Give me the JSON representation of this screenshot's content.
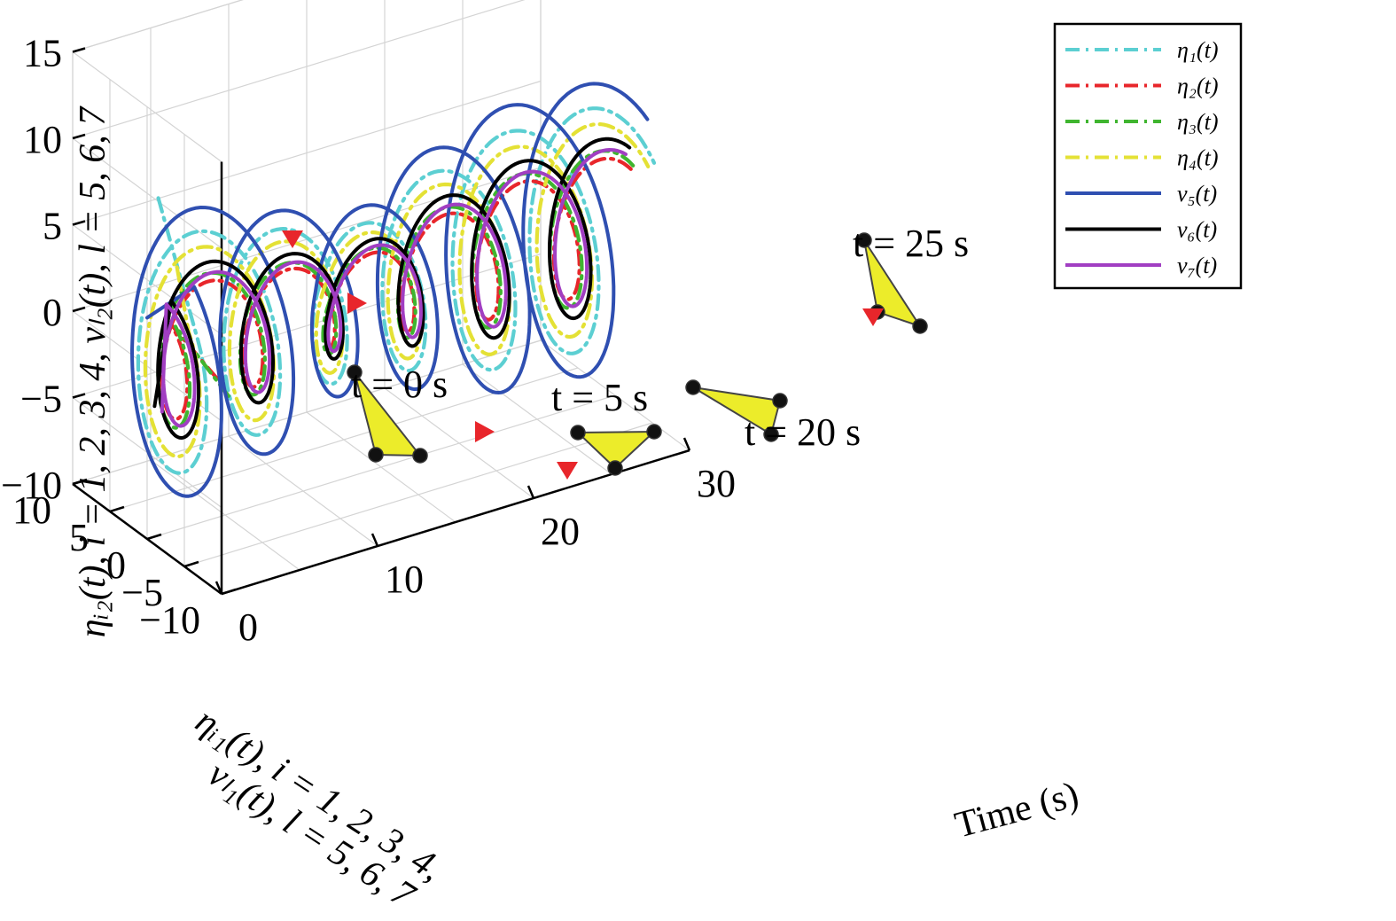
{
  "chart_data": {
    "type": "line",
    "subtype": "3d-spiral-trajectories",
    "title": "",
    "axes": {
      "x": {
        "label": "Time (s)",
        "range": [
          0,
          30
        ],
        "ticks": [
          "0",
          "10",
          "20",
          "30"
        ]
      },
      "y": {
        "label_lines": [
          "ηᵢ₁(t), i = 1, 2, 3, 4,",
          "vₗ₁(t), l = 5, 6, 7"
        ],
        "range": [
          -10,
          10
        ],
        "ticks": [
          "10",
          "5",
          "0",
          "−5",
          "−10"
        ]
      },
      "z": {
        "label": "ηᵢ₂(t), i = 1, 2, 3, 4, vₗ₂(t), l = 5, 6, 7",
        "range": [
          -10,
          15
        ],
        "ticks": [
          "15",
          "10",
          "5",
          "0",
          "−5",
          "−10"
        ]
      }
    },
    "grid": true,
    "legend_position": "top-right",
    "series": [
      {
        "name": "η₁(t)",
        "color": "#5ccfd2",
        "dash": "dash-dot",
        "radius": 7.0,
        "phase": 2.55,
        "start": [
          0.0,
          -1.5,
          10.2
        ]
      },
      {
        "name": "η₂(t)",
        "color": "#e8262b",
        "dash": "dash-dot",
        "radius": 3.8,
        "phase": 2.2,
        "start": [
          4.0,
          -1.0,
          -1.5
        ]
      },
      {
        "name": "η₃(t)",
        "color": "#3fb52f",
        "dash": "dash-dot",
        "radius": 4.3,
        "phase": 2.3,
        "start": [
          4.5,
          -1.5,
          -2.5
        ]
      },
      {
        "name": "η₄(t)",
        "color": "#e4e135",
        "dash": "dash-dot",
        "radius": 6.0,
        "phase": 2.5,
        "start": [
          0.0,
          -4.0,
          7.0
        ]
      },
      {
        "name": "v₅(t)",
        "color": "#2f4fb1",
        "dash": "solid",
        "radius": 8.5,
        "phase": 2.25,
        "start": [
          0.0,
          0.0,
          2.8
        ]
      },
      {
        "name": "v₆(t)",
        "color": "#000000",
        "dash": "solid",
        "radius": 5.0,
        "phase": 2.0,
        "start": [
          0.0,
          -1.0,
          -2.0
        ]
      },
      {
        "name": "v₇(t)",
        "color": "#a13ec2",
        "dash": "solid",
        "radius": 4.3,
        "phase": 1.9,
        "start": [
          0.0,
          -2.0,
          -2.0
        ]
      }
    ],
    "annotations": [
      {
        "text": "t = 0 s",
        "time": 0
      },
      {
        "text": "t = 5 s",
        "time": 5
      },
      {
        "text": "t = 20 s",
        "time": 20
      },
      {
        "text": "t = 25 s",
        "time": 25
      }
    ]
  },
  "colors": {
    "formation_fill": "#ecec2a",
    "marker_red": "#e8262b",
    "grid": "#d4d4d4"
  }
}
